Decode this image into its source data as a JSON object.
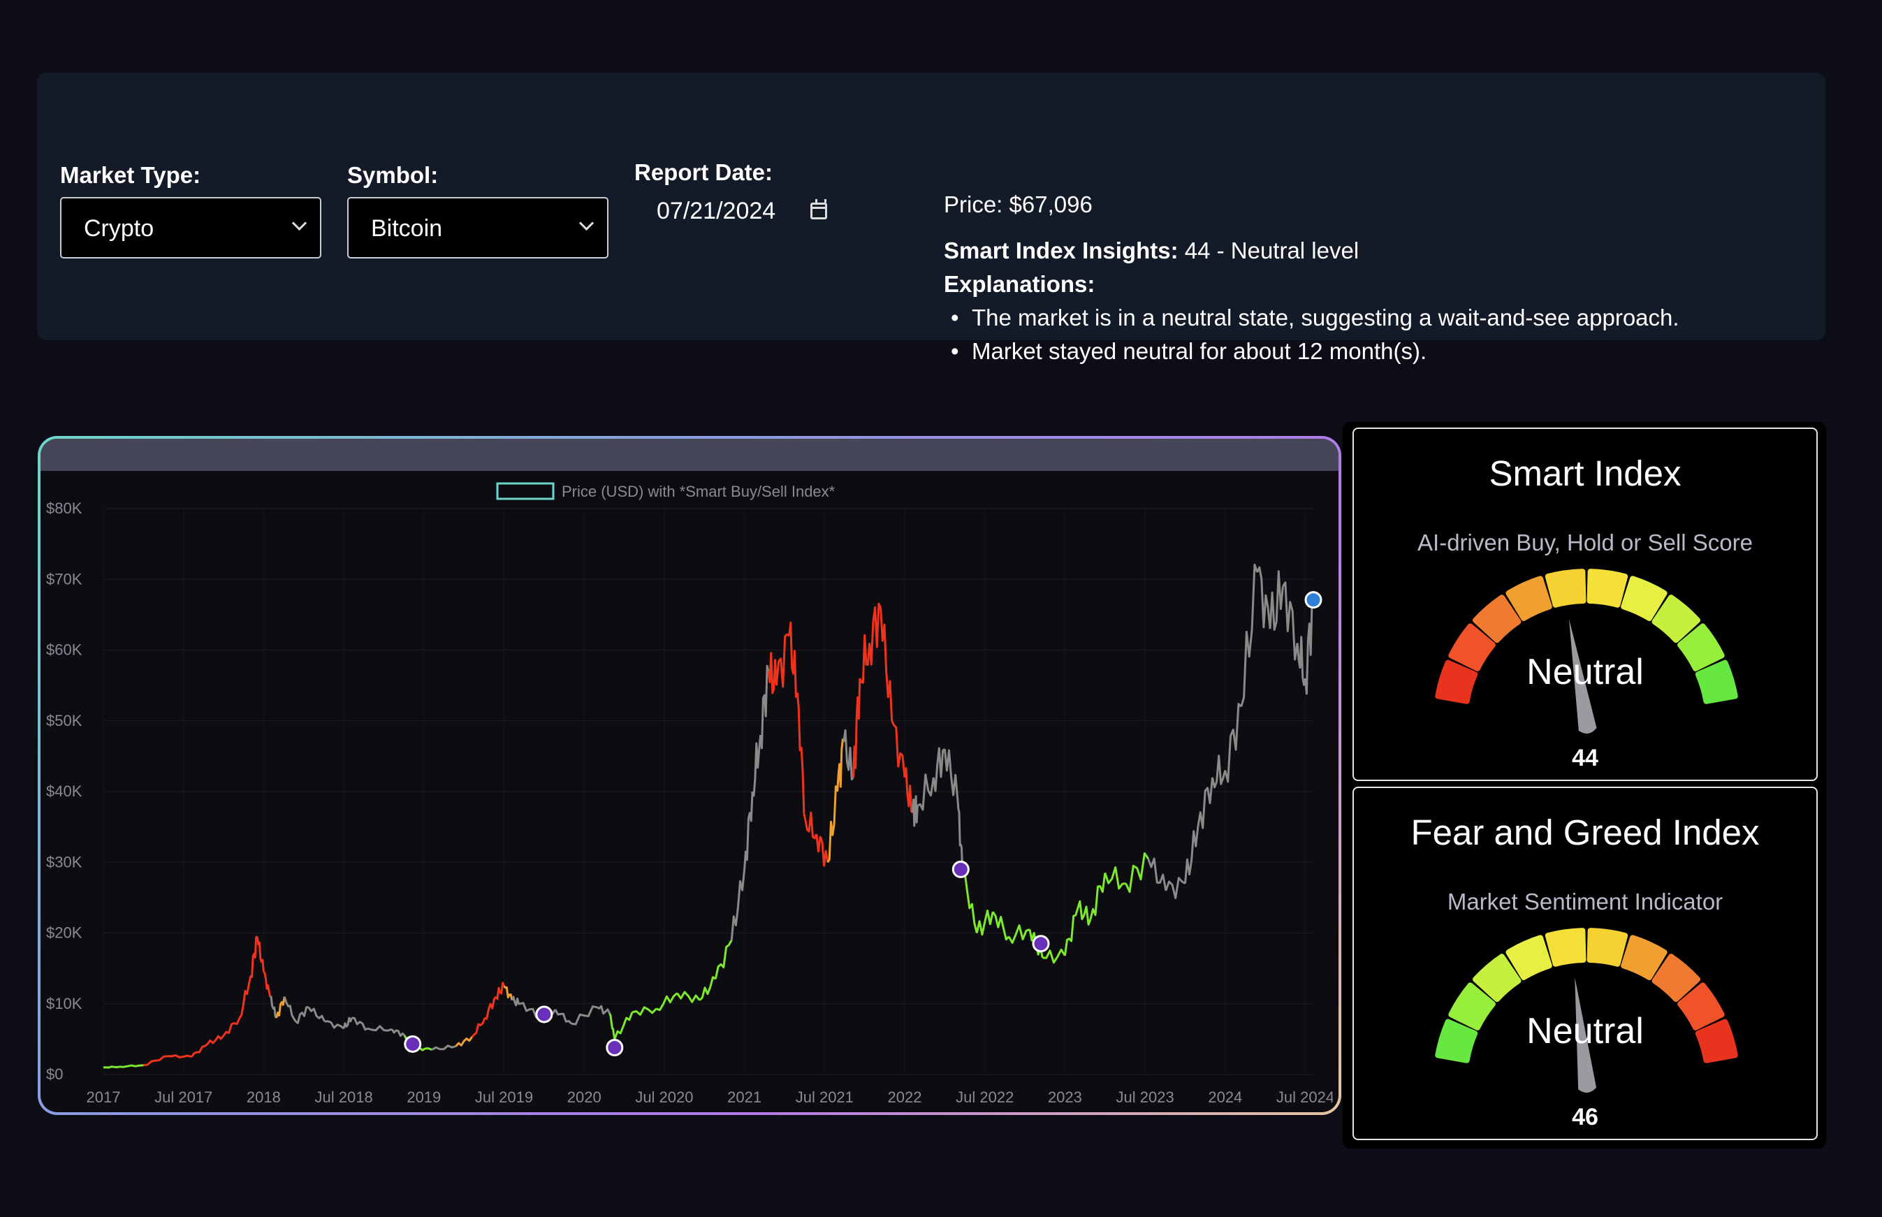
{
  "controls": {
    "market_type": {
      "label": "Market Type:",
      "value": "Crypto"
    },
    "symbol": {
      "label": "Symbol:",
      "value": "Bitcoin"
    },
    "report_date": {
      "label": "Report Date:",
      "value": "07/21/2024"
    }
  },
  "insights": {
    "price": "Price: $67,096",
    "smart_label": "Smart Index Insights:",
    "smart_text": " 44 - Neutral level",
    "explanations_label": "Explanations:",
    "bullets": [
      "The market is in a neutral state, suggesting a wait-and-see approach.",
      "Market stayed neutral for about 12 month(s)."
    ]
  },
  "chart_data": {
    "type": "line",
    "legend": "Price (USD) with *Smart Buy/Sell Index*",
    "legend_position": "top-center",
    "y_ticks": [
      "$0",
      "$10K",
      "$20K",
      "$30K",
      "$40K",
      "$50K",
      "$60K",
      "$70K",
      "$80K"
    ],
    "ylim": [
      0,
      80000
    ],
    "x_ticks": [
      "2017",
      "Jul 2017",
      "2018",
      "Jul 2018",
      "2019",
      "Jul 2019",
      "2020",
      "Jul 2020",
      "2021",
      "Jul 2021",
      "2022",
      "Jul 2022",
      "2023",
      "Jul 2023",
      "2024",
      "Jul 2024"
    ],
    "xlim": [
      2017.0,
      2024.55
    ],
    "series_colors": {
      "sell": "#f0331d",
      "caution": "#f0a030",
      "neutral": "#8a8a8a",
      "buy": "#7ce82e"
    },
    "points": [
      {
        "x": 2017.0,
        "y": 1000,
        "c": "buy"
      },
      {
        "x": 2017.1,
        "y": 1100,
        "c": "buy"
      },
      {
        "x": 2017.25,
        "y": 1300,
        "c": "buy"
      },
      {
        "x": 2017.4,
        "y": 2600,
        "c": "sell"
      },
      {
        "x": 2017.55,
        "y": 2500,
        "c": "sell"
      },
      {
        "x": 2017.65,
        "y": 4300,
        "c": "sell"
      },
      {
        "x": 2017.75,
        "y": 5500,
        "c": "sell"
      },
      {
        "x": 2017.85,
        "y": 8000,
        "c": "sell"
      },
      {
        "x": 2017.92,
        "y": 14000,
        "c": "sell"
      },
      {
        "x": 2017.96,
        "y": 19500,
        "c": "sell"
      },
      {
        "x": 2018.0,
        "y": 14500,
        "c": "sell"
      },
      {
        "x": 2018.04,
        "y": 11000,
        "c": "sell"
      },
      {
        "x": 2018.08,
        "y": 8000,
        "c": "neutral"
      },
      {
        "x": 2018.13,
        "y": 11000,
        "c": "caution"
      },
      {
        "x": 2018.2,
        "y": 7500,
        "c": "neutral"
      },
      {
        "x": 2018.28,
        "y": 9500,
        "c": "neutral"
      },
      {
        "x": 2018.38,
        "y": 7500,
        "c": "neutral"
      },
      {
        "x": 2018.5,
        "y": 6500,
        "c": "neutral"
      },
      {
        "x": 2018.55,
        "y": 8000,
        "c": "neutral"
      },
      {
        "x": 2018.65,
        "y": 6500,
        "c": "neutral"
      },
      {
        "x": 2018.8,
        "y": 6400,
        "c": "neutral"
      },
      {
        "x": 2018.88,
        "y": 5500,
        "c": "neutral"
      },
      {
        "x": 2018.93,
        "y": 3800,
        "c": "buy"
      },
      {
        "x": 2019.05,
        "y": 3500,
        "c": "buy"
      },
      {
        "x": 2019.2,
        "y": 4000,
        "c": "neutral"
      },
      {
        "x": 2019.3,
        "y": 5300,
        "c": "caution"
      },
      {
        "x": 2019.38,
        "y": 8000,
        "c": "sell"
      },
      {
        "x": 2019.45,
        "y": 11000,
        "c": "sell"
      },
      {
        "x": 2019.5,
        "y": 12500,
        "c": "sell"
      },
      {
        "x": 2019.55,
        "y": 10500,
        "c": "caution"
      },
      {
        "x": 2019.6,
        "y": 10000,
        "c": "neutral"
      },
      {
        "x": 2019.72,
        "y": 8300,
        "c": "neutral"
      },
      {
        "x": 2019.82,
        "y": 9200,
        "c": "neutral"
      },
      {
        "x": 2019.92,
        "y": 7200,
        "c": "neutral"
      },
      {
        "x": 2020.08,
        "y": 9500,
        "c": "neutral"
      },
      {
        "x": 2020.16,
        "y": 8600,
        "c": "neutral"
      },
      {
        "x": 2020.19,
        "y": 5000,
        "c": "buy"
      },
      {
        "x": 2020.3,
        "y": 8800,
        "c": "buy"
      },
      {
        "x": 2020.45,
        "y": 9300,
        "c": "buy"
      },
      {
        "x": 2020.58,
        "y": 11500,
        "c": "buy"
      },
      {
        "x": 2020.72,
        "y": 10500,
        "c": "buy"
      },
      {
        "x": 2020.82,
        "y": 13500,
        "c": "buy"
      },
      {
        "x": 2020.92,
        "y": 19000,
        "c": "buy"
      },
      {
        "x": 2021.0,
        "y": 29000,
        "c": "neutral"
      },
      {
        "x": 2021.05,
        "y": 40000,
        "c": "neutral"
      },
      {
        "x": 2021.1,
        "y": 48000,
        "c": "neutral"
      },
      {
        "x": 2021.15,
        "y": 57000,
        "c": "neutral"
      },
      {
        "x": 2021.2,
        "y": 55000,
        "c": "sell"
      },
      {
        "x": 2021.28,
        "y": 62000,
        "c": "sell"
      },
      {
        "x": 2021.33,
        "y": 54000,
        "c": "sell"
      },
      {
        "x": 2021.38,
        "y": 36000,
        "c": "sell"
      },
      {
        "x": 2021.45,
        "y": 34000,
        "c": "sell"
      },
      {
        "x": 2021.52,
        "y": 30000,
        "c": "sell"
      },
      {
        "x": 2021.58,
        "y": 40000,
        "c": "caution"
      },
      {
        "x": 2021.62,
        "y": 47000,
        "c": "caution"
      },
      {
        "x": 2021.68,
        "y": 42000,
        "c": "neutral"
      },
      {
        "x": 2021.72,
        "y": 56000,
        "c": "sell"
      },
      {
        "x": 2021.78,
        "y": 61000,
        "c": "sell"
      },
      {
        "x": 2021.85,
        "y": 66000,
        "c": "sell"
      },
      {
        "x": 2021.92,
        "y": 50000,
        "c": "sell"
      },
      {
        "x": 2022.0,
        "y": 42000,
        "c": "sell"
      },
      {
        "x": 2022.05,
        "y": 37000,
        "c": "sell"
      },
      {
        "x": 2022.08,
        "y": 38000,
        "c": "neutral"
      },
      {
        "x": 2022.18,
        "y": 42000,
        "c": "neutral"
      },
      {
        "x": 2022.25,
        "y": 46000,
        "c": "neutral"
      },
      {
        "x": 2022.33,
        "y": 39000,
        "c": "neutral"
      },
      {
        "x": 2022.36,
        "y": 29000,
        "c": "neutral"
      },
      {
        "x": 2022.45,
        "y": 20000,
        "c": "buy"
      },
      {
        "x": 2022.55,
        "y": 23000,
        "c": "buy"
      },
      {
        "x": 2022.65,
        "y": 19500,
        "c": "buy"
      },
      {
        "x": 2022.78,
        "y": 20500,
        "c": "buy"
      },
      {
        "x": 2022.86,
        "y": 16500,
        "c": "buy"
      },
      {
        "x": 2023.0,
        "y": 16800,
        "c": "buy"
      },
      {
        "x": 2023.08,
        "y": 23500,
        "c": "buy"
      },
      {
        "x": 2023.16,
        "y": 22000,
        "c": "buy"
      },
      {
        "x": 2023.25,
        "y": 28500,
        "c": "buy"
      },
      {
        "x": 2023.38,
        "y": 27000,
        "c": "buy"
      },
      {
        "x": 2023.52,
        "y": 30500,
        "c": "buy"
      },
      {
        "x": 2023.63,
        "y": 26000,
        "c": "neutral"
      },
      {
        "x": 2023.75,
        "y": 27000,
        "c": "neutral"
      },
      {
        "x": 2023.83,
        "y": 35000,
        "c": "neutral"
      },
      {
        "x": 2023.92,
        "y": 42000,
        "c": "neutral"
      },
      {
        "x": 2024.0,
        "y": 43000,
        "c": "neutral"
      },
      {
        "x": 2024.1,
        "y": 52000,
        "c": "neutral"
      },
      {
        "x": 2024.2,
        "y": 71000,
        "c": "neutral"
      },
      {
        "x": 2024.28,
        "y": 63000,
        "c": "neutral"
      },
      {
        "x": 2024.36,
        "y": 69000,
        "c": "neutral"
      },
      {
        "x": 2024.45,
        "y": 61000,
        "c": "neutral"
      },
      {
        "x": 2024.5,
        "y": 56000,
        "c": "neutral"
      },
      {
        "x": 2024.55,
        "y": 67000,
        "c": "neutral"
      }
    ],
    "markers": [
      {
        "x": 2018.93,
        "y": 4300,
        "color": "#6a2fb8"
      },
      {
        "x": 2019.75,
        "y": 8500,
        "color": "#6a2fb8"
      },
      {
        "x": 2020.19,
        "y": 3800,
        "color": "#6a2fb8"
      },
      {
        "x": 2022.35,
        "y": 29000,
        "color": "#6a2fb8"
      },
      {
        "x": 2022.85,
        "y": 18500,
        "color": "#6a2fb8"
      },
      {
        "x": 2024.55,
        "y": 67096,
        "color": "#2f7fd8"
      }
    ]
  },
  "gauges": [
    {
      "title": "Smart Index",
      "subtitle": "AI-driven Buy, Hold or Sell Score",
      "state": "Neutral",
      "value": 44,
      "value_text": "44",
      "segment_colors": [
        "#e8341f",
        "#f0522a",
        "#f07a30",
        "#f0a030",
        "#f5d232",
        "#f5e03a",
        "#e6ef42",
        "#c5f03e",
        "#98ee3c",
        "#66e840"
      ]
    },
    {
      "title": "Fear and Greed Index",
      "subtitle": "Market Sentiment Indicator",
      "state": "Neutral",
      "value": 46,
      "value_text": "46",
      "segment_colors": [
        "#66e840",
        "#98ee3c",
        "#c5f03e",
        "#e6ef42",
        "#f5e03a",
        "#f5d232",
        "#f0a030",
        "#f07a30",
        "#f0522a",
        "#e8341f"
      ]
    }
  ]
}
